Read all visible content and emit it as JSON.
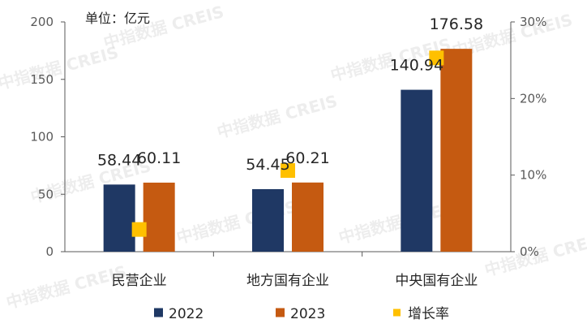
{
  "chart_data": {
    "type": "bar",
    "unit_label": "单位：亿元",
    "categories": [
      "民营企业",
      "地方国有企业",
      "中央国有企业"
    ],
    "series": [
      {
        "name": "2022",
        "kind": "bar",
        "axis": "left",
        "color": "#1f3864",
        "values": [
          58.44,
          54.45,
          140.94
        ],
        "labels": [
          "58.44",
          "54.45",
          "140.94"
        ]
      },
      {
        "name": "2023",
        "kind": "bar",
        "axis": "left",
        "color": "#c55a11",
        "values": [
          60.11,
          60.21,
          176.58
        ],
        "labels": [
          "60.11",
          "60.21",
          "176.58"
        ]
      },
      {
        "name": "增长率",
        "kind": "point",
        "axis": "right",
        "color": "#ffc000",
        "values": [
          2.9,
          10.6,
          25.3
        ]
      }
    ],
    "y_left": {
      "min": 0,
      "max": 200,
      "ticks": [
        0,
        50,
        100,
        150,
        200
      ],
      "tick_labels": [
        "0",
        "50",
        "100",
        "150",
        "200"
      ]
    },
    "y_right": {
      "min": 0,
      "max": 30,
      "ticks": [
        0,
        10,
        20,
        30
      ],
      "tick_labels": [
        "0%",
        "10%",
        "20%",
        "30%"
      ]
    },
    "legend": {
      "position": "bottom"
    },
    "grid": false,
    "watermark": "中指数据 CREIS"
  }
}
